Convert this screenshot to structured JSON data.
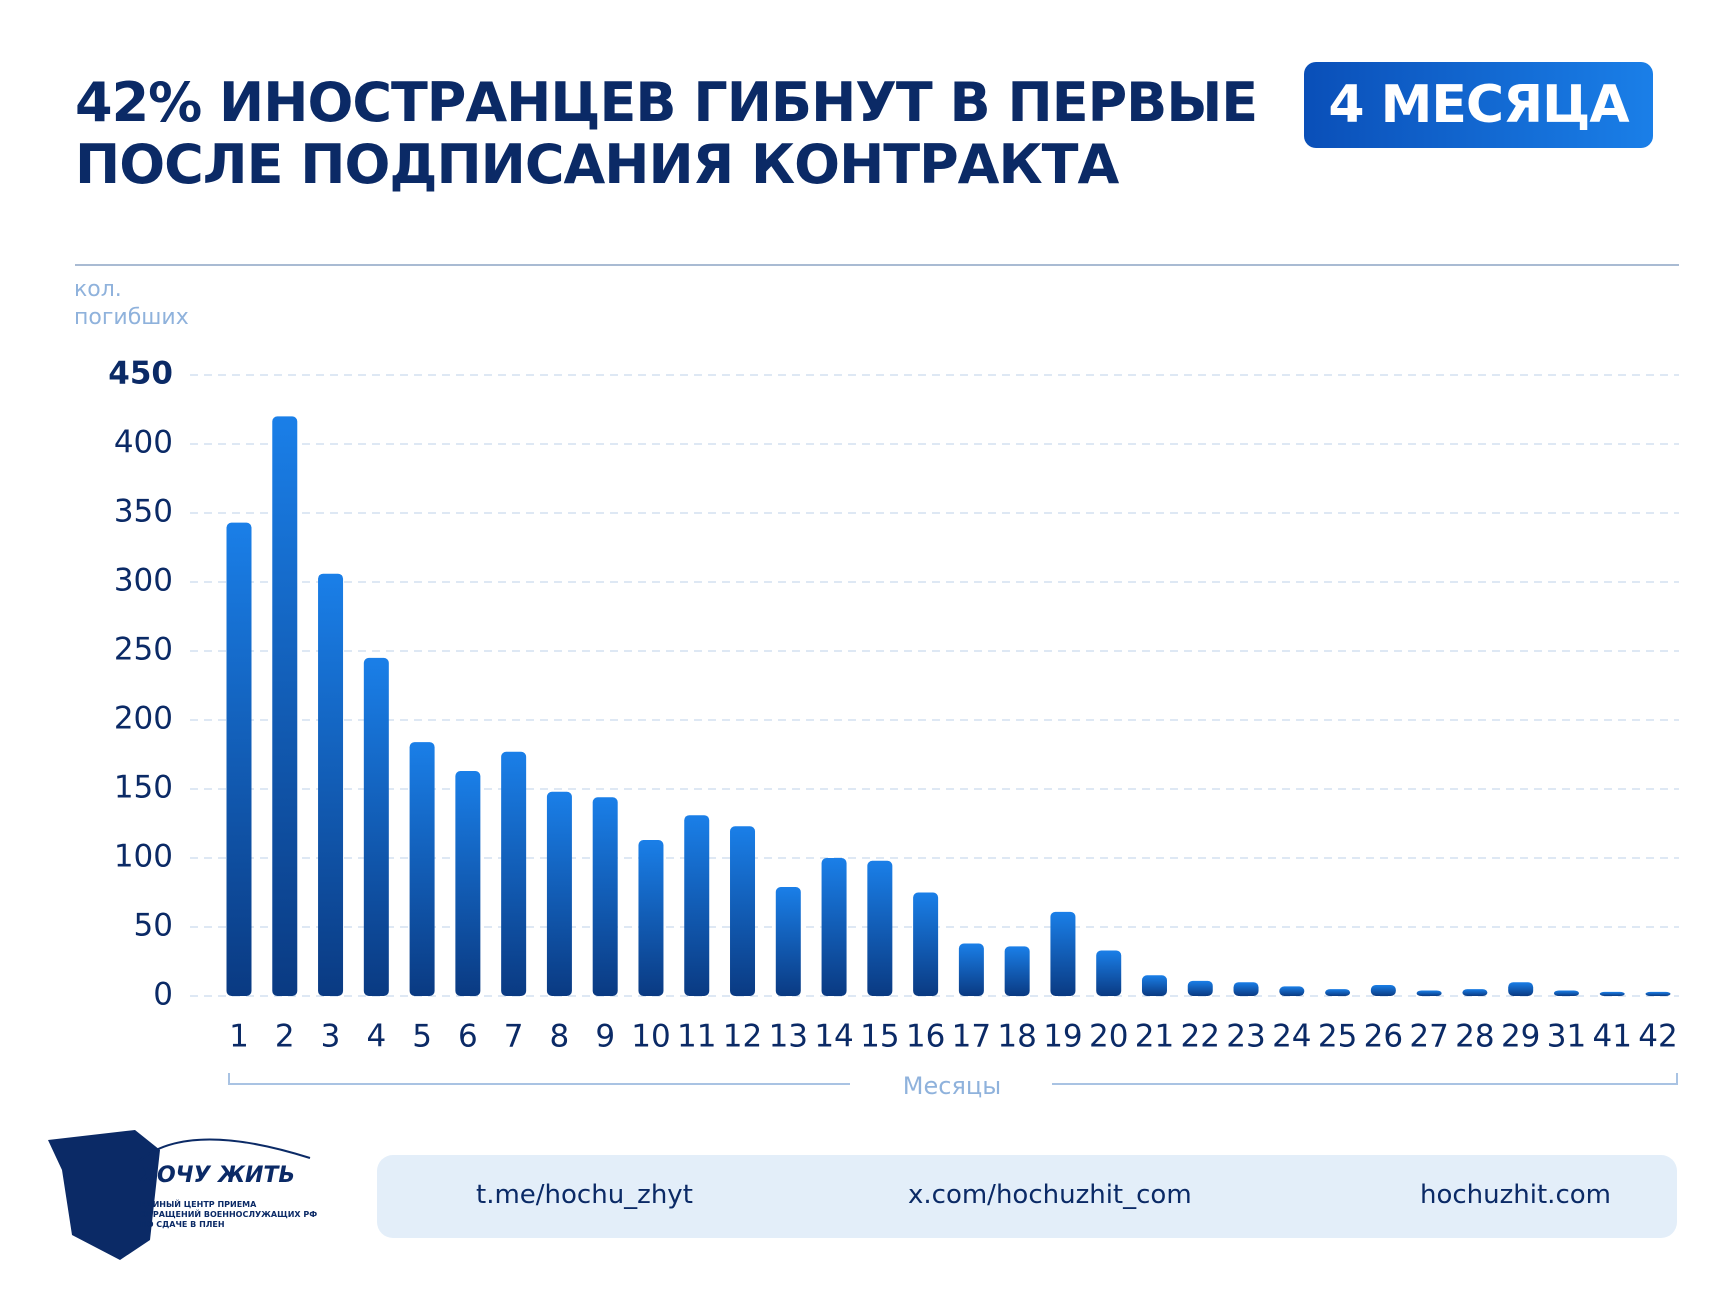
{
  "header": {
    "title": "42% ИНОСТРАНЦЕВ ГИБНУТ В ПЕРВЫЕ ПОСЛЕ ПОДПИСАНИЯ КОНТРАКТА",
    "badge": "4 МЕСЯЦА"
  },
  "chart_data": {
    "type": "bar",
    "ylabel": "кол. погибших",
    "xlabel": "Месяцы",
    "color": "#1a7fe8",
    "categories": [
      "1",
      "2",
      "3",
      "4",
      "5",
      "6",
      "7",
      "8",
      "9",
      "10",
      "11",
      "12",
      "13",
      "14",
      "15",
      "16",
      "17",
      "18",
      "19",
      "20",
      "21",
      "22",
      "23",
      "24",
      "25",
      "26",
      "27",
      "28",
      "29",
      "31",
      "41",
      "42"
    ],
    "values": [
      343,
      420,
      306,
      245,
      184,
      163,
      177,
      148,
      144,
      113,
      131,
      123,
      79,
      100,
      98,
      75,
      38,
      36,
      61,
      33,
      15,
      11,
      10,
      7,
      5,
      8,
      4,
      5,
      10,
      4,
      3,
      3
    ],
    "ylim": [
      0,
      450
    ],
    "yticks": [
      0,
      50,
      100,
      150,
      200,
      250,
      300,
      350,
      400,
      450
    ],
    "grid": true
  },
  "footer": {
    "logo_name": "ХОЧУ ЖИТЬ",
    "logo_text": "ЕДИНЫЙ ЦЕНТР ПРИЕМА ОБРАЩЕНИЙ ВОЕННОСЛУЖАЩИХ РФ ПО СДАЧЕ В ПЛЕН",
    "links": [
      "t.me/hochu_zhyt",
      "x.com/hochuzhit_com",
      "hochuzhit.com"
    ]
  }
}
